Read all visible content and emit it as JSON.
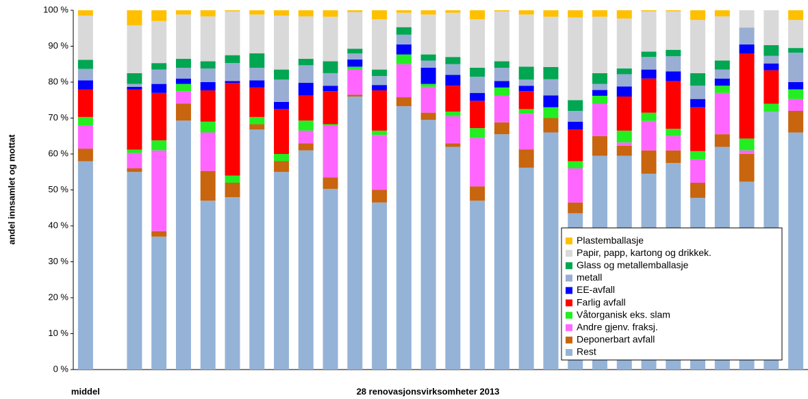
{
  "chart_data": {
    "type": "stacked-bar",
    "y_label": "andel innsamlet og mottat",
    "x_label": "28  renovasjonsvirksomheter 2013",
    "categories": [
      "middel",
      null,
      null,
      null,
      null,
      null,
      null,
      null,
      null,
      null,
      null,
      null,
      null,
      null,
      null,
      null,
      null,
      null,
      null,
      null,
      null,
      null,
      null,
      null,
      null,
      null,
      null,
      null,
      null,
      null
    ],
    "ylim": [
      0,
      100
    ],
    "yticks": [
      {
        "value": 0,
        "label": "0 %"
      },
      {
        "value": 10,
        "label": "10 %"
      },
      {
        "value": 20,
        "label": "20 %"
      },
      {
        "value": 30,
        "label": "30 %"
      },
      {
        "value": 40,
        "label": "40 %"
      },
      {
        "value": 50,
        "label": "50 %"
      },
      {
        "value": 60,
        "label": "60 %"
      },
      {
        "value": 70,
        "label": "70 %"
      },
      {
        "value": 80,
        "label": "80 %"
      },
      {
        "value": 90,
        "label": "90 %"
      },
      {
        "value": 100,
        "label": "100 %"
      }
    ],
    "legend": "lower-right",
    "series": [
      {
        "name": "Rest",
        "color": "#95b3d7",
        "values": [
          58,
          null,
          55,
          37,
          69.3,
          47,
          48,
          66.8,
          55,
          61,
          50.3,
          76,
          46.5,
          73.3,
          69.5,
          62,
          47,
          65.5,
          56.2,
          66,
          43.5,
          59.5,
          59.5,
          54.5,
          57.5,
          47.8,
          62,
          52.3,
          71.8,
          66
        ]
      },
      {
        "name": "Deponerbart avfall",
        "color": "#c8650e",
        "values": [
          3.5,
          null,
          1,
          1.5,
          4.7,
          8.3,
          4,
          1.5,
          3,
          2,
          3.2,
          0.5,
          3.5,
          2.5,
          2,
          1,
          4,
          3.3,
          5.1,
          4,
          3,
          5.5,
          2.8,
          6.5,
          3.5,
          4.2,
          3.5,
          7.7,
          0,
          6
        ]
      },
      {
        "name": "Andre gjenv. fraksj.",
        "color": "#ff66ff",
        "values": [
          6.5,
          null,
          4.3,
          22.5,
          3.5,
          10.7,
          0,
          0,
          0,
          3.5,
          14.5,
          7,
          15.3,
          9.2,
          7.2,
          7.5,
          13.5,
          7.4,
          9.9,
          0,
          9.5,
          9,
          0.9,
          8.2,
          4,
          6.5,
          11.5,
          1,
          0,
          3.3
        ]
      },
      {
        "name": "Våtorganisk eks. slam",
        "color": "#22ee22",
        "values": [
          2.3,
          null,
          0.9,
          2.8,
          2,
          3,
          2,
          2,
          2,
          2.8,
          0.3,
          0.8,
          1.2,
          2.7,
          0.8,
          1.3,
          2.7,
          2.3,
          1.3,
          3,
          2,
          2.2,
          3.3,
          2.3,
          2,
          2.3,
          2,
          3.3,
          2.2,
          2.7
        ]
      },
      {
        "name": "Farlig avfall",
        "color": "#ff0000",
        "values": [
          7.7,
          null,
          16.8,
          13.2,
          0,
          8.7,
          25.8,
          8.2,
          12.5,
          7,
          9.2,
          0,
          11.2,
          0,
          0,
          7.2,
          7.6,
          0,
          5,
          0,
          8.8,
          0,
          9.5,
          9.5,
          13.3,
          12.2,
          0,
          23.7,
          9.3,
          0
        ]
      },
      {
        "name": "EE-avfall",
        "color": "#0000ff",
        "values": [
          2.5,
          null,
          0.7,
          2.5,
          1.5,
          2.3,
          0.5,
          2,
          2,
          3.5,
          1.5,
          2,
          1.5,
          2.8,
          4.5,
          3,
          2.2,
          1.8,
          1.5,
          3.3,
          2.2,
          1.6,
          2.8,
          2.5,
          2.7,
          2.3,
          2,
          2.5,
          1.9,
          2
        ]
      },
      {
        "name": "metall",
        "color": "#9aaed3",
        "values": [
          3.2,
          null,
          0.8,
          4,
          3,
          3.8,
          5,
          3.5,
          6.2,
          4.9,
          3.5,
          1.7,
          2.5,
          2.7,
          2,
          3,
          4.5,
          3.7,
          1.7,
          4.5,
          3,
          1.7,
          3.4,
          3.5,
          4.2,
          3.7,
          2.5,
          4.7,
          2.1,
          8.2
        ]
      },
      {
        "name": "Glass og metallemballasje",
        "color": "#00a651",
        "values": [
          2.5,
          null,
          3,
          1.8,
          2.5,
          2,
          2.2,
          4,
          2.8,
          1.8,
          3.3,
          1.3,
          1.8,
          2.1,
          1.7,
          2,
          2.5,
          1.8,
          3.6,
          3.4,
          3,
          3,
          1.6,
          1.5,
          1.8,
          3.5,
          2.5,
          0,
          3,
          1.3
        ]
      },
      {
        "name": "Papir, papp, kartong og drikkek.",
        "color": "#d9d9d9",
        "values": [
          12.3,
          null,
          13.3,
          11.7,
          12.3,
          12.5,
          12.2,
          10.8,
          15,
          11.8,
          12.4,
          10.2,
          14,
          4,
          11.1,
          12.3,
          13.5,
          13.9,
          14.5,
          14,
          23,
          15.7,
          13.9,
          11.2,
          10.7,
          14.8,
          12.3,
          4.8,
          9.7,
          7.8
        ]
      },
      {
        "name": "Plastemballasje",
        "color": "#ffc000",
        "values": [
          1.5,
          null,
          4.2,
          3,
          1.2,
          1.7,
          0.3,
          1.2,
          1.5,
          1.7,
          1.8,
          0.5,
          2.5,
          0.7,
          1.2,
          0.7,
          2.5,
          0.3,
          1.2,
          1.8,
          2,
          1.8,
          2.3,
          0.3,
          0.3,
          2.7,
          1.7,
          0,
          0,
          2.7
        ]
      }
    ]
  }
}
